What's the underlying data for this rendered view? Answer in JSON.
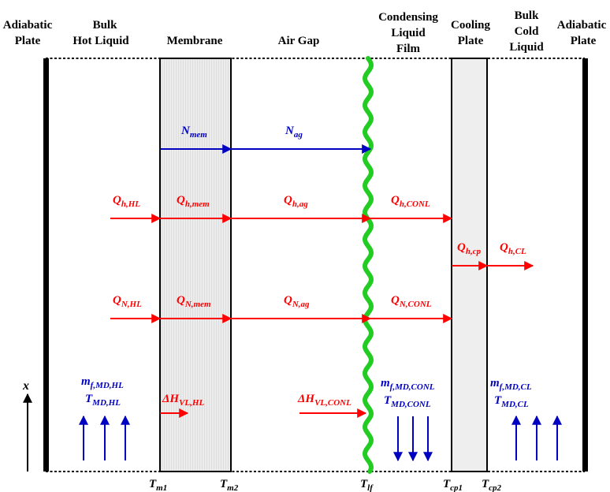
{
  "headers": {
    "adiabatic_left": [
      "Adiabatic",
      "Plate"
    ],
    "bulk_hot": [
      "Bulk",
      "Hot Liquid"
    ],
    "membrane": [
      "Membrane"
    ],
    "air_gap": [
      "Air Gap"
    ],
    "condensing": [
      "Condensing",
      "Liquid",
      "Film"
    ],
    "cooling": [
      "Cooling",
      "Plate"
    ],
    "bulk_cold": [
      "Bulk",
      "Cold",
      "Liquid"
    ],
    "adiabatic_right": [
      "Adiabatic",
      "Plate"
    ]
  },
  "flux_labels": {
    "n_mem": {
      "main": "N",
      "sub": "mem"
    },
    "n_ag": {
      "main": "N",
      "sub": "ag"
    },
    "qh_hl": {
      "main": "Q",
      "sub": "h,HL"
    },
    "qh_mem": {
      "main": "Q",
      "sub": "h,mem"
    },
    "qh_ag": {
      "main": "Q",
      "sub": "h,ag"
    },
    "qh_conl": {
      "main": "Q",
      "sub": "h,CONL"
    },
    "qh_cp": {
      "main": "Q",
      "sub": "h,cp"
    },
    "qh_cl": {
      "main": "Q",
      "sub": "h,CL"
    },
    "qn_hl": {
      "main": "Q",
      "sub": "N,HL"
    },
    "qn_mem": {
      "main": "Q",
      "sub": "N,mem"
    },
    "qn_ag": {
      "main": "Q",
      "sub": "N,ag"
    },
    "qn_conl": {
      "main": "Q",
      "sub": "N,CONL"
    },
    "dh_hl": {
      "main": "ΔH",
      "sub": "VL,HL"
    },
    "dh_conl": {
      "main": "ΔH",
      "sub": "VL,CONL"
    }
  },
  "mass_labels": {
    "hl_m": {
      "main": "m",
      "sub": "f,MD,HL"
    },
    "hl_t": {
      "main": "T",
      "sub": "MD,HL"
    },
    "conl_m": {
      "main": "m",
      "sub": "f,MD,CONL"
    },
    "conl_t": {
      "main": "T",
      "sub": "MD,CONL"
    },
    "cl_m": {
      "main": "m",
      "sub": "f,MD,CL"
    },
    "cl_t": {
      "main": "T",
      "sub": "MD,CL"
    }
  },
  "temperatures": {
    "tm1": {
      "main": "T",
      "sub": "m1"
    },
    "tm2": {
      "main": "T",
      "sub": "m2"
    },
    "tlf": {
      "main": "T",
      "sub": "lf"
    },
    "tcp1": {
      "main": "T",
      "sub": "cp1"
    },
    "tcp2": {
      "main": "T",
      "sub": "cp2"
    }
  },
  "axis_label": "x",
  "colors": {
    "heat": "#ff0000",
    "mass": "#0000c0",
    "film": "#22cc22",
    "membrane_fill": "#ebebeb",
    "cooling_fill": "#eeeeee"
  }
}
